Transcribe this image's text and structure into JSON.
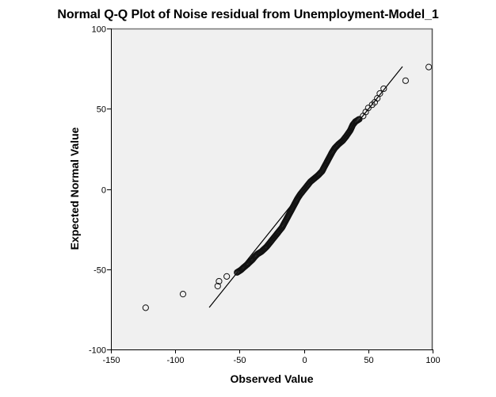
{
  "chart_data": {
    "type": "scatter",
    "title": "Normal Q-Q Plot of Noise residual from Unemployment-Model_1",
    "xlabel": "Observed Value",
    "ylabel": "Expected Normal Value",
    "xlim": [
      -150,
      100
    ],
    "ylim": [
      -100,
      100
    ],
    "xticks": [
      -150,
      -100,
      -50,
      0,
      50,
      100
    ],
    "yticks": [
      -100,
      -50,
      0,
      50,
      100
    ],
    "grid": false,
    "legend": null,
    "background": "#f0f0f0",
    "reference_line": {
      "x": [
        -73.6,
        76.6
      ],
      "y": [
        -73.8,
        76.3
      ]
    },
    "points": [
      [
        -123,
        -74
      ],
      [
        -94,
        -65.5
      ],
      [
        -67,
        -60.5
      ],
      [
        -66,
        -57.5
      ],
      [
        -60,
        -54.5
      ],
      [
        -52,
        -52
      ],
      [
        -49,
        -50.5
      ],
      [
        -47,
        -49
      ],
      [
        -44,
        -47
      ],
      [
        -42,
        -45.5
      ],
      [
        -40,
        -44
      ],
      [
        -38,
        -42
      ],
      [
        -36,
        -40.5
      ],
      [
        -33,
        -39
      ],
      [
        -31,
        -37.5
      ],
      [
        -29,
        -36
      ],
      [
        -27,
        -34
      ],
      [
        -25,
        -32
      ],
      [
        -23,
        -30
      ],
      [
        -21,
        -28
      ],
      [
        -19,
        -26
      ],
      [
        -17,
        -24
      ],
      [
        -15,
        -21
      ],
      [
        -13,
        -18
      ],
      [
        -11,
        -15
      ],
      [
        -9,
        -12
      ],
      [
        -7,
        -9
      ],
      [
        -5,
        -6
      ],
      [
        -3,
        -3.5
      ],
      [
        -1,
        -1.5
      ],
      [
        1,
        0.5
      ],
      [
        3,
        2.5
      ],
      [
        5,
        4.5
      ],
      [
        8,
        6.5
      ],
      [
        11,
        8.5
      ],
      [
        14,
        11
      ],
      [
        16,
        14
      ],
      [
        18,
        17
      ],
      [
        20,
        20
      ],
      [
        22,
        23
      ],
      [
        24,
        25.5
      ],
      [
        27,
        28
      ],
      [
        30,
        30
      ],
      [
        33,
        33
      ],
      [
        36,
        36.5
      ],
      [
        38,
        40
      ],
      [
        40,
        42
      ],
      [
        43,
        43.5
      ],
      [
        46,
        45.5
      ],
      [
        48,
        48
      ],
      [
        50,
        50.5
      ],
      [
        53,
        52.5
      ],
      [
        55,
        54
      ],
      [
        57,
        56.5
      ],
      [
        59,
        59.5
      ],
      [
        62,
        62.5
      ],
      [
        79,
        67.5
      ],
      [
        97,
        76
      ]
    ]
  }
}
